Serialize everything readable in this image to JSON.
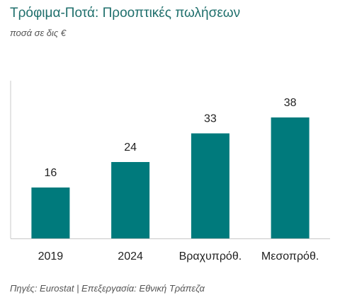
{
  "header": {
    "title": "Τρόφιμα-Ποτά: Προοπτικές πωλήσεων",
    "subtitle": "ποσά σε δις €"
  },
  "footer": {
    "source": "Πηγές: Eurostat | Επεξεργασία: Εθνική Τράπεζα"
  },
  "colors": {
    "bar": "#007a7c",
    "axis": "#c8c8c8",
    "title": "#1f6f6c"
  },
  "chart_data": {
    "type": "bar",
    "title": "Τρόφιμα-Ποτά: Προοπτικές πωλήσεων",
    "subtitle": "ποσά σε δις €",
    "categories": [
      "2019",
      "2024",
      "Βραχυπρόθ.",
      "Μεσοπρόθ."
    ],
    "values": [
      16,
      24,
      33,
      38
    ],
    "data_labels": [
      "16",
      "24",
      "33",
      "38"
    ],
    "xlabel": "",
    "ylabel": "",
    "ylim": [
      0,
      45
    ],
    "grid": false,
    "legend": "none"
  }
}
